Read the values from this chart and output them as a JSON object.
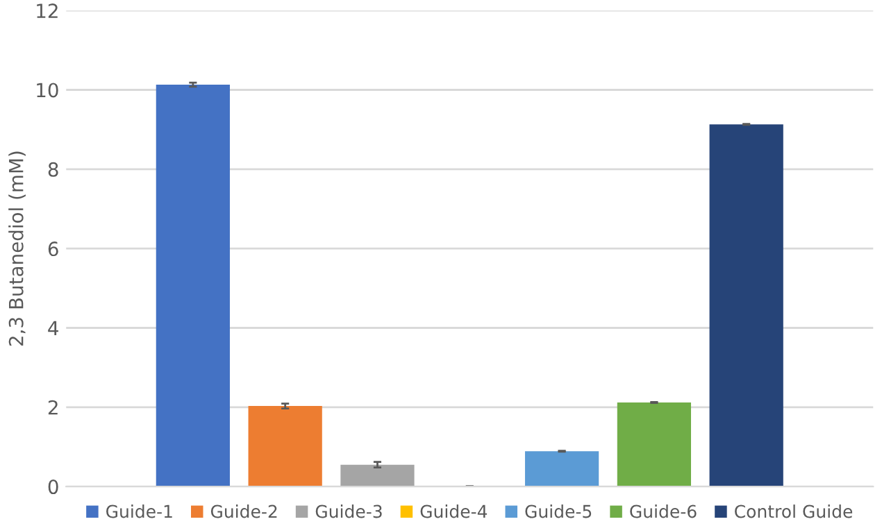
{
  "chart_data": {
    "type": "bar",
    "ylabel": "2,3 Butanediol (mM)",
    "categories": [
      null
    ],
    "series": [
      {
        "name": "Guide-1",
        "color": "#4472c4",
        "values": [
          10.13
        ],
        "errors": [
          0.05
        ]
      },
      {
        "name": "Guide-2",
        "color": "#ed7d31",
        "values": [
          2.03
        ],
        "errors": [
          0.06
        ]
      },
      {
        "name": "Guide-3",
        "color": "#a5a5a5",
        "values": [
          0.55
        ],
        "errors": [
          0.07
        ]
      },
      {
        "name": "Guide-4",
        "color": "#ffc000",
        "values": [
          0
        ],
        "errors": [
          0.01
        ]
      },
      {
        "name": "Guide-5",
        "color": "#5b9bd5",
        "values": [
          0.89
        ],
        "errors": [
          0.01
        ]
      },
      {
        "name": "Guide-6",
        "color": "#70ad47",
        "values": [
          2.12
        ],
        "errors": [
          0.01
        ]
      },
      {
        "name": "Control Guide",
        "color": "#264478",
        "values": [
          9.13
        ],
        "errors": [
          0.01
        ]
      }
    ],
    "ylim": [
      0,
      12
    ],
    "yticks": [
      0,
      2,
      4,
      6,
      8,
      10,
      12
    ],
    "grid": "y",
    "legend": "bottom"
  }
}
